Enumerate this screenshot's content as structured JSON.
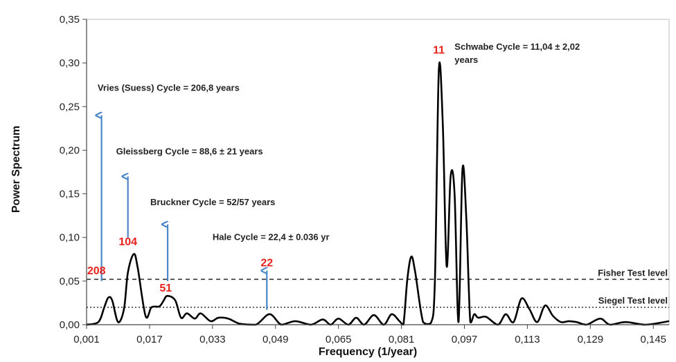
{
  "chart_data": {
    "type": "line",
    "xlabel": "Frequency (1/year)",
    "ylabel": "Power Spectrum",
    "xlim": [
      0.001,
      0.149
    ],
    "ylim": [
      0,
      0.35
    ],
    "grid": false,
    "x_ticks": [
      "0,001",
      "0,017",
      "0,033",
      "0,049",
      "0,065",
      "0,081",
      "0,097",
      "0,113",
      "0,129",
      "0,145"
    ],
    "x_tick_values": [
      0.001,
      0.017,
      0.033,
      0.049,
      0.065,
      0.081,
      0.097,
      0.113,
      0.129,
      0.145
    ],
    "y_ticks": [
      "0,00",
      "0,05",
      "0,10",
      "0,15",
      "0,20",
      "0,25",
      "0,30",
      "0,35"
    ],
    "y_tick_values": [
      0,
      0.05,
      0.1,
      0.15,
      0.2,
      0.25,
      0.3,
      0.35
    ],
    "series": [
      {
        "color": "#000000",
        "x": [
          0.001,
          0.004,
          0.0055,
          0.0065,
          0.0075,
          0.009,
          0.0105,
          0.0115,
          0.013,
          0.014,
          0.016,
          0.0175,
          0.0195,
          0.0205,
          0.0215,
          0.0235,
          0.025,
          0.0265,
          0.0285,
          0.03,
          0.0325,
          0.0345,
          0.037,
          0.04,
          0.044,
          0.0475,
          0.0505,
          0.054,
          0.058,
          0.061,
          0.063,
          0.065,
          0.0675,
          0.0695,
          0.0715,
          0.074,
          0.0765,
          0.0785,
          0.0805,
          0.0815,
          0.0825,
          0.0835,
          0.0845,
          0.0865,
          0.0885,
          0.0895,
          0.0905,
          0.0915,
          0.0925,
          0.0935,
          0.0945,
          0.0955,
          0.0965,
          0.0975,
          0.0985,
          0.0995,
          0.1005,
          0.1025,
          0.1055,
          0.1075,
          0.1095,
          0.1115,
          0.1135,
          0.1155,
          0.1175,
          0.1195,
          0.1215,
          0.1235,
          0.1255,
          0.128,
          0.1315,
          0.134,
          0.138,
          0.143,
          0.149
        ],
        "y": [
          0.0,
          0.003,
          0.02,
          0.031,
          0.028,
          0.003,
          0.018,
          0.06,
          0.081,
          0.065,
          0.01,
          0.02,
          0.021,
          0.027,
          0.033,
          0.028,
          0.008,
          0.013,
          0.007,
          0.013,
          0.004,
          0.008,
          0.007,
          0.001,
          0.0,
          0.012,
          0.0,
          0.004,
          0.0,
          0.006,
          0.0,
          0.007,
          0.0,
          0.008,
          0.0,
          0.011,
          0.0,
          0.012,
          0.004,
          0.0,
          0.052,
          0.078,
          0.06,
          0.003,
          0.002,
          0.05,
          0.292,
          0.23,
          0.067,
          0.17,
          0.15,
          0.003,
          0.178,
          0.12,
          0.003,
          0.012,
          0.008,
          0.009,
          0.0,
          0.012,
          0.003,
          0.03,
          0.018,
          0.003,
          0.022,
          0.01,
          0.003,
          0.004,
          0.003,
          0.0,
          0.007,
          0.0,
          0.003,
          0.0,
          0.004
        ]
      }
    ],
    "reference_lines": [
      {
        "label": "Fisher Test level",
        "y": 0.052,
        "style": "dashed"
      },
      {
        "label": "Siegel Test level",
        "y": 0.02,
        "style": "dotted"
      }
    ],
    "annotations": [
      {
        "text": "Vries (Suess) Cycle = 206,8 years",
        "x": 0.0038,
        "y": 0.268
      },
      {
        "text": "Gleissberg Cycle = 88,6 ± 21 years",
        "x": 0.0085,
        "y": 0.195
      },
      {
        "text": "Bruckner Cycle = 52/57 years",
        "x": 0.0172,
        "y": 0.137
      },
      {
        "text": "Hale Cycle = 22,4 ± 0.036 yr",
        "x": 0.033,
        "y": 0.097
      },
      {
        "text": "Schwabe Cycle = 11,04 ± 2,02",
        "x": 0.0945,
        "y": 0.315
      },
      {
        "text": "years",
        "x": 0.0945,
        "y": 0.3
      }
    ],
    "arrows": [
      {
        "x": 0.0048,
        "y_start": 0.05,
        "y_end": 0.24
      },
      {
        "x": 0.0115,
        "y_start": 0.1,
        "y_end": 0.17
      },
      {
        "x": 0.0216,
        "y_start": 0.05,
        "y_end": 0.115
      },
      {
        "x": 0.0468,
        "y_start": 0.017,
        "y_end": 0.062
      }
    ],
    "peak_labels": [
      {
        "text": "208",
        "x": 0.0035,
        "y": 0.058
      },
      {
        "text": "104",
        "x": 0.0115,
        "y": 0.091
      },
      {
        "text": "51",
        "x": 0.0211,
        "y": 0.038
      },
      {
        "text": "22",
        "x": 0.0468,
        "y": 0.067
      },
      {
        "text": "11",
        "x": 0.0905,
        "y": 0.311
      }
    ],
    "label_color": "#e8211a",
    "arrow_color": "#4a86c8"
  }
}
